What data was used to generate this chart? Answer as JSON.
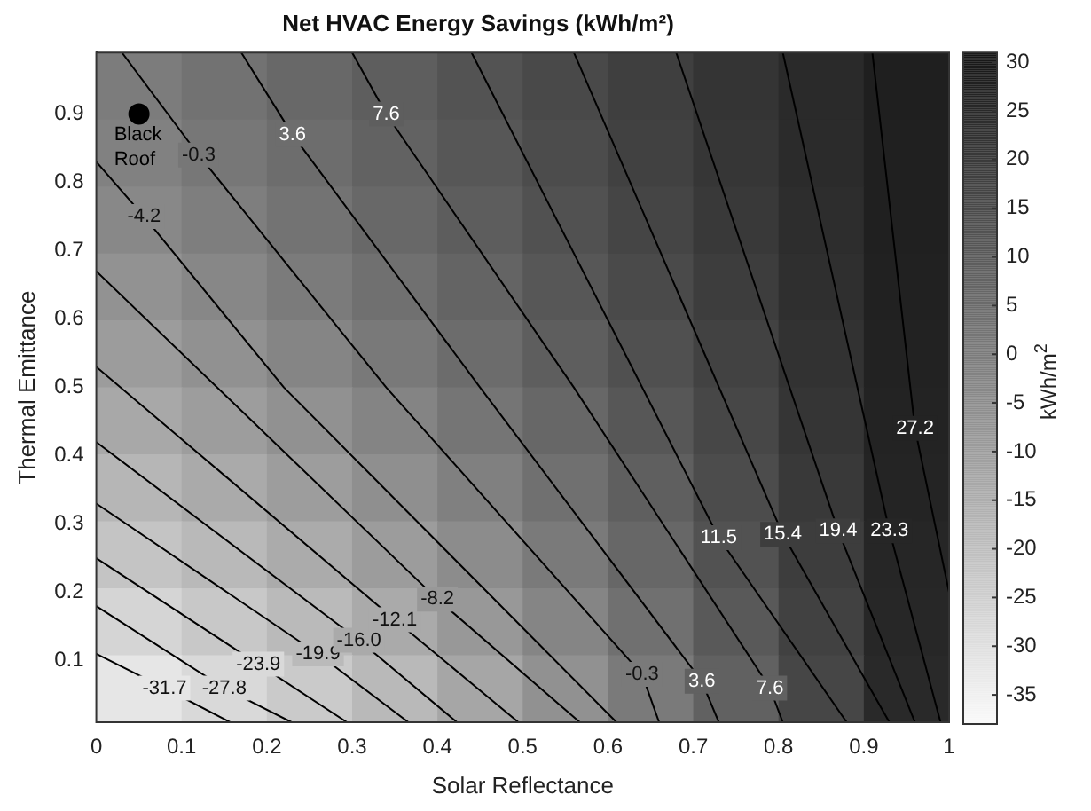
{
  "chart_data": {
    "type": "heatmap",
    "title": "Net HVAC Energy Savings (kWh/m²)",
    "xlabel": "Solar Reflectance",
    "ylabel": "Thermal Emittance",
    "clabel": "kWh/m$^{2}$",
    "xlim": [
      0,
      1
    ],
    "xticks": [
      0,
      0.1,
      0.2,
      0.3,
      0.4,
      0.5,
      0.6,
      0.7,
      0.8,
      0.9,
      1
    ],
    "ylim": [
      0.01,
      0.99
    ],
    "yticks": [
      0.1,
      0.2,
      0.3,
      0.4,
      0.5,
      0.6,
      0.7,
      0.8,
      0.9
    ],
    "clim": [
      -38,
      31
    ],
    "cticks": [
      -35,
      -30,
      -25,
      -20,
      -15,
      -10,
      -5,
      0,
      5,
      10,
      15,
      20,
      25,
      30
    ],
    "cells": [
      [
        0.0,
        3.1,
        6.2,
        9.3,
        12.4,
        15.6,
        18.7,
        21.9,
        25.0,
        28.2
      ],
      [
        -1.5,
        1.6,
        4.8,
        8.0,
        11.3,
        14.6,
        17.9,
        21.3,
        24.7,
        28.1
      ],
      [
        -3.6,
        -0.4,
        2.9,
        6.2,
        9.6,
        13.1,
        16.7,
        20.4,
        24.1,
        27.9
      ],
      [
        -6.4,
        -3.1,
        0.3,
        3.8,
        7.5,
        11.3,
        15.2,
        19.2,
        23.4,
        27.7
      ],
      [
        -9.6,
        -6.3,
        -2.7,
        1.0,
        5.0,
        9.1,
        13.3,
        17.8,
        22.5,
        27.4
      ],
      [
        -13.3,
        -9.8,
        -6.1,
        -2.2,
        2.1,
        6.6,
        11.3,
        16.3,
        21.5,
        27.0
      ],
      [
        -17.4,
        -13.8,
        -9.9,
        -5.7,
        -1.1,
        3.8,
        9.0,
        14.6,
        20.4,
        26.7
      ],
      [
        -21.8,
        -18.2,
        -14.1,
        -9.6,
        -4.6,
        0.7,
        6.4,
        12.7,
        19.3,
        26.3
      ],
      [
        -26.7,
        -22.9,
        -18.6,
        -13.8,
        -8.4,
        -2.6,
        3.7,
        10.6,
        18.0,
        25.9
      ],
      [
        -31.9,
        -28.0,
        -23.4,
        -18.3,
        -12.5,
        -6.1,
        0.8,
        8.4,
        16.6,
        25.4
      ]
    ],
    "series": [
      {
        "type": "line",
        "name": "-31.7",
        "color": "#000000",
        "x": [
          0,
          0.08,
          0.157
        ],
        "values": [
          0.11,
          0.06,
          0.01
        ]
      },
      {
        "type": "line",
        "name": "-27.8",
        "color": "#000000",
        "x": [
          0,
          0.15,
          0.229
        ],
        "values": [
          0.18,
          0.06,
          0.01
        ]
      },
      {
        "type": "line",
        "name": "-23.9",
        "color": "#000000",
        "x": [
          0,
          0.19,
          0.294
        ],
        "values": [
          0.25,
          0.095,
          0.01
        ]
      },
      {
        "type": "line",
        "name": "-19.9",
        "color": "#000000",
        "x": [
          0,
          0.26,
          0.366
        ],
        "values": [
          0.33,
          0.11,
          0.01
        ]
      },
      {
        "type": "line",
        "name": "-16.0",
        "color": "#000000",
        "x": [
          0,
          0.308,
          0.423
        ],
        "values": [
          0.42,
          0.13,
          0.01
        ]
      },
      {
        "type": "line",
        "name": "-12.1",
        "color": "#000000",
        "x": [
          0,
          0.35,
          0.495
        ],
        "values": [
          0.53,
          0.16,
          0.01
        ]
      },
      {
        "type": "line",
        "name": "-8.2",
        "color": "#000000",
        "x": [
          0,
          0.4,
          0.567
        ],
        "values": [
          0.67,
          0.19,
          0.01
        ]
      },
      {
        "type": "line",
        "name": "-4.2",
        "color": "#000000",
        "x": [
          0,
          0.056,
          0.22,
          0.61
        ],
        "values": [
          0.83,
          0.75,
          0.5,
          0.01
        ]
      },
      {
        "type": "line",
        "name": "-0.3",
        "color": "#000000",
        "x": [
          0.03,
          0.12,
          0.34,
          0.64,
          0.66
        ],
        "values": [
          0.99,
          0.84,
          0.5,
          0.08,
          0.01
        ]
      },
      {
        "type": "line",
        "name": "3.6",
        "color": "#000000",
        "x": [
          0.17,
          0.23,
          0.45,
          0.71,
          0.73
        ],
        "values": [
          0.99,
          0.87,
          0.5,
          0.07,
          0.01
        ]
      },
      {
        "type": "line",
        "name": "7.6",
        "color": "#000000",
        "x": [
          0.3,
          0.34,
          0.56,
          0.79,
          0.805
        ],
        "values": [
          0.99,
          0.9,
          0.5,
          0.06,
          0.01
        ]
      },
      {
        "type": "line",
        "name": "11.5",
        "color": "#000000",
        "x": [
          0.44,
          0.73,
          0.88
        ],
        "values": [
          0.99,
          0.28,
          0.01
        ]
      },
      {
        "type": "line",
        "name": "15.4",
        "color": "#000000",
        "x": [
          0.56,
          0.805,
          0.93
        ],
        "values": [
          0.99,
          0.285,
          0.01
        ]
      },
      {
        "type": "line",
        "name": "19.4",
        "color": "#000000",
        "x": [
          0.68,
          0.87,
          0.96
        ],
        "values": [
          0.99,
          0.29,
          0.01
        ]
      },
      {
        "type": "line",
        "name": "23.3",
        "color": "#000000",
        "x": [
          0.805,
          0.93,
          0.99
        ],
        "values": [
          0.99,
          0.29,
          0.01
        ]
      },
      {
        "type": "line",
        "name": "27.2",
        "color": "#000000",
        "x": [
          0.91,
          0.96,
          1.0
        ],
        "values": [
          0.99,
          0.44,
          0.2
        ]
      },
      {
        "type": "scatter",
        "name": "Black Roof",
        "color": "#000000",
        "x": [
          0.05
        ],
        "values": [
          0.9
        ]
      }
    ],
    "grid": false,
    "legend": false
  }
}
